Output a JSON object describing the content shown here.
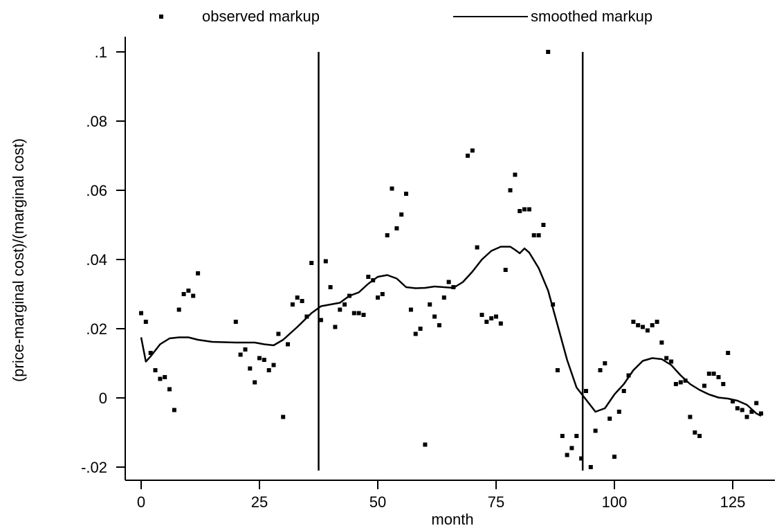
{
  "chart_data": {
    "type": "scatter",
    "title": "",
    "xlabel": "month",
    "ylabel": "(price-marginal cost)/(marginal cost)",
    "xlim": [
      -2,
      133
    ],
    "ylim": [
      -0.021,
      0.102
    ],
    "x_ticks": [
      0,
      25,
      50,
      75,
      100,
      125
    ],
    "x_tick_labels": [
      "0",
      "25",
      "50",
      "75",
      "100",
      "125"
    ],
    "y_ticks": [
      -0.02,
      0,
      0.02,
      0.04,
      0.06,
      0.08,
      0.1
    ],
    "y_tick_labels": [
      "-.02",
      "0",
      ".02",
      ".04",
      ".06",
      ".08",
      ".1"
    ],
    "grid": false,
    "legend_position": "top",
    "vertical_lines": [
      {
        "x": 37.5,
        "y_range": [
          -0.021,
          0.1
        ]
      },
      {
        "x": 93.3,
        "y_range": [
          -0.021,
          0.1
        ]
      }
    ],
    "series": [
      {
        "name": "observed markup",
        "kind": "points",
        "points": [
          [
            0,
            0.0245
          ],
          [
            1,
            0.022
          ],
          [
            2,
            0.013
          ],
          [
            3,
            0.008
          ],
          [
            4,
            0.0055
          ],
          [
            5,
            0.006
          ],
          [
            6,
            0.0025
          ],
          [
            7,
            -0.0035
          ],
          [
            8,
            0.0255
          ],
          [
            9,
            0.03
          ],
          [
            10,
            0.031
          ],
          [
            11,
            0.0295
          ],
          [
            12,
            0.036
          ],
          [
            20,
            0.022
          ],
          [
            21,
            0.0125
          ],
          [
            22,
            0.014
          ],
          [
            23,
            0.0085
          ],
          [
            24,
            0.0045
          ],
          [
            25,
            0.0115
          ],
          [
            26,
            0.011
          ],
          [
            27,
            0.008
          ],
          [
            28,
            0.0095
          ],
          [
            29,
            0.0185
          ],
          [
            30,
            -0.0055
          ],
          [
            31,
            0.0155
          ],
          [
            32,
            0.027
          ],
          [
            33,
            0.029
          ],
          [
            34,
            0.028
          ],
          [
            35,
            0.0235
          ],
          [
            36,
            0.039
          ],
          [
            38,
            0.0225
          ],
          [
            39,
            0.0395
          ],
          [
            40,
            0.032
          ],
          [
            41,
            0.0205
          ],
          [
            42,
            0.0255
          ],
          [
            43,
            0.027
          ],
          [
            44,
            0.0295
          ],
          [
            45,
            0.0245
          ],
          [
            46,
            0.0245
          ],
          [
            47,
            0.024
          ],
          [
            48,
            0.035
          ],
          [
            49,
            0.034
          ],
          [
            50,
            0.029
          ],
          [
            51,
            0.03
          ],
          [
            52,
            0.047
          ],
          [
            53,
            0.0605
          ],
          [
            54,
            0.049
          ],
          [
            55,
            0.053
          ],
          [
            56,
            0.059
          ],
          [
            57,
            0.0255
          ],
          [
            58,
            0.0185
          ],
          [
            59,
            0.02
          ],
          [
            60,
            -0.0135
          ],
          [
            61,
            0.027
          ],
          [
            62,
            0.0235
          ],
          [
            63,
            0.021
          ],
          [
            64,
            0.029
          ],
          [
            65,
            0.0335
          ],
          [
            66,
            0.032
          ],
          [
            69,
            0.07
          ],
          [
            70,
            0.0715
          ],
          [
            71,
            0.0435
          ],
          [
            72,
            0.024
          ],
          [
            73,
            0.022
          ],
          [
            74,
            0.023
          ],
          [
            75,
            0.0235
          ],
          [
            76,
            0.0215
          ],
          [
            77,
            0.037
          ],
          [
            78,
            0.06
          ],
          [
            79,
            0.0645
          ],
          [
            80,
            0.054
          ],
          [
            81,
            0.0545
          ],
          [
            82,
            0.0545
          ],
          [
            83,
            0.047
          ],
          [
            84,
            0.047
          ],
          [
            85,
            0.05
          ],
          [
            86,
            0.1
          ],
          [
            87,
            0.027
          ],
          [
            88,
            0.008
          ],
          [
            89,
            -0.011
          ],
          [
            90,
            -0.0165
          ],
          [
            91,
            -0.0145
          ],
          [
            92,
            -0.011
          ],
          [
            93,
            -0.0175
          ],
          [
            94,
            0.002
          ],
          [
            95,
            -0.02
          ],
          [
            96,
            -0.0095
          ],
          [
            97,
            0.008
          ],
          [
            98,
            0.01
          ],
          [
            99,
            -0.006
          ],
          [
            100,
            -0.017
          ],
          [
            101,
            -0.004
          ],
          [
            102,
            0.002
          ],
          [
            103,
            0.0065
          ],
          [
            104,
            0.022
          ],
          [
            105,
            0.021
          ],
          [
            106,
            0.0205
          ],
          [
            107,
            0.0195
          ],
          [
            108,
            0.021
          ],
          [
            109,
            0.022
          ],
          [
            110,
            0.016
          ],
          [
            111,
            0.0115
          ],
          [
            112,
            0.0105
          ],
          [
            113,
            0.004
          ],
          [
            114,
            0.0045
          ],
          [
            115,
            0.005
          ],
          [
            116,
            -0.0055
          ],
          [
            117,
            -0.01
          ],
          [
            118,
            -0.011
          ],
          [
            119,
            0.0035
          ],
          [
            120,
            0.007
          ],
          [
            121,
            0.007
          ],
          [
            122,
            0.006
          ],
          [
            123,
            0.004
          ],
          [
            124,
            0.013
          ],
          [
            125,
            -0.001
          ],
          [
            126,
            -0.003
          ],
          [
            127,
            -0.0035
          ],
          [
            128,
            -0.0055
          ],
          [
            129,
            -0.004
          ],
          [
            130,
            -0.0015
          ],
          [
            131,
            -0.0045
          ]
        ]
      },
      {
        "name": "smoothed markup",
        "kind": "line",
        "points": [
          [
            0,
            0.0175
          ],
          [
            1,
            0.0105
          ],
          [
            2,
            0.012
          ],
          [
            4,
            0.0155
          ],
          [
            6,
            0.0172
          ],
          [
            8,
            0.0175
          ],
          [
            10,
            0.0175
          ],
          [
            12,
            0.0168
          ],
          [
            15,
            0.0162
          ],
          [
            20,
            0.016
          ],
          [
            24,
            0.016
          ],
          [
            26,
            0.0155
          ],
          [
            28,
            0.0152
          ],
          [
            30,
            0.0168
          ],
          [
            33,
            0.0205
          ],
          [
            36,
            0.0245
          ],
          [
            38,
            0.0265
          ],
          [
            40,
            0.027
          ],
          [
            42,
            0.0275
          ],
          [
            44,
            0.0295
          ],
          [
            46,
            0.0305
          ],
          [
            48,
            0.033
          ],
          [
            50,
            0.035
          ],
          [
            52,
            0.0355
          ],
          [
            54,
            0.0345
          ],
          [
            56,
            0.032
          ],
          [
            58,
            0.0317
          ],
          [
            60,
            0.0318
          ],
          [
            62,
            0.0322
          ],
          [
            64,
            0.032
          ],
          [
            66,
            0.0318
          ],
          [
            68,
            0.0335
          ],
          [
            70,
            0.0365
          ],
          [
            72,
            0.04
          ],
          [
            74,
            0.0425
          ],
          [
            76,
            0.0437
          ],
          [
            78,
            0.0437
          ],
          [
            79,
            0.0428
          ],
          [
            80,
            0.0418
          ],
          [
            81,
            0.0432
          ],
          [
            82,
            0.042
          ],
          [
            84,
            0.0375
          ],
          [
            86,
            0.031
          ],
          [
            88,
            0.021
          ],
          [
            90,
            0.011
          ],
          [
            92,
            0.003
          ],
          [
            94,
            -0.0005
          ],
          [
            96,
            -0.004
          ],
          [
            98,
            -0.003
          ],
          [
            100,
            0.001
          ],
          [
            102,
            0.004
          ],
          [
            104,
            0.008
          ],
          [
            106,
            0.0107
          ],
          [
            108,
            0.0115
          ],
          [
            110,
            0.0112
          ],
          [
            112,
            0.0095
          ],
          [
            114,
            0.0065
          ],
          [
            116,
            0.004
          ],
          [
            118,
            0.0023
          ],
          [
            120,
            0.001
          ],
          [
            122,
            0.0001
          ],
          [
            124,
            -0.0002
          ],
          [
            126,
            -0.0008
          ],
          [
            128,
            -0.002
          ],
          [
            130,
            -0.0045
          ],
          [
            131,
            -0.0052
          ]
        ]
      }
    ]
  }
}
